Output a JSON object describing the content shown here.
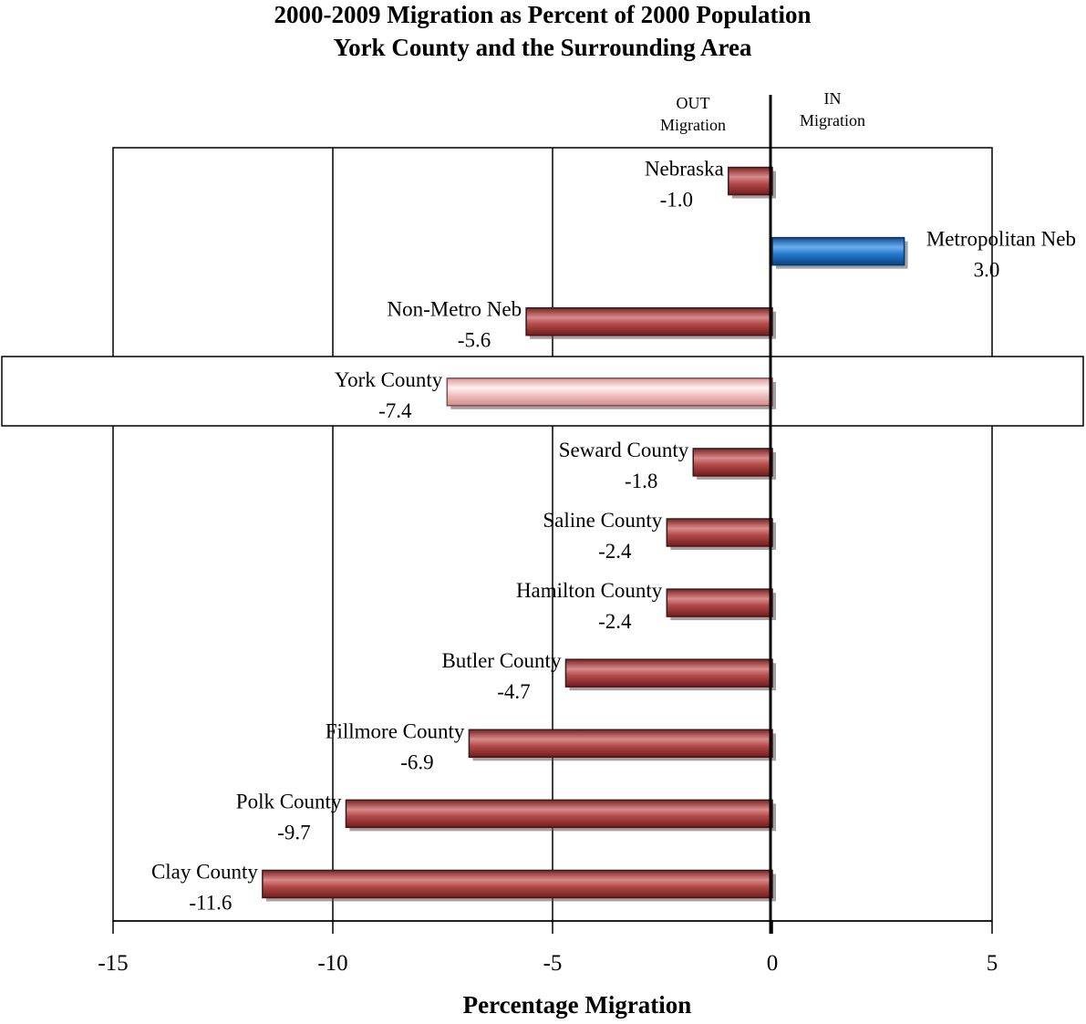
{
  "chart_data": {
    "type": "bar",
    "orientation": "horizontal",
    "title": "2000-2009 Migration as Percent of 2000 Population",
    "subtitle": "York County and the Surrounding Area",
    "xlabel": "Percentage Migration",
    "ylabel": "",
    "xlim": [
      -15,
      5
    ],
    "xticks": [
      -15,
      -10,
      -5,
      0,
      5
    ],
    "grid": "vertical",
    "out_label": {
      "line1": "OUT",
      "line2": "Migration"
    },
    "in_label": {
      "line1": "IN",
      "line2": "Migration"
    },
    "highlighted": "York County",
    "colors": {
      "negative": "#a83c3c",
      "positive": "#1f6fc0",
      "highlight": "#f2b3b3",
      "gridline": "#000000"
    },
    "categories": [
      "Nebraska",
      "Metropolitan Neb",
      "Non-Metro Neb",
      "York County",
      "Seward County",
      "Saline County",
      "Hamilton County",
      "Butler County",
      "Fillmore County",
      "Polk County",
      "Clay County"
    ],
    "values": [
      -1.0,
      3.0,
      -5.6,
      -7.4,
      -1.8,
      -2.4,
      -2.4,
      -4.7,
      -6.9,
      -9.7,
      -11.6
    ],
    "value_labels": [
      "-1.0",
      "3.0",
      "-5.6",
      "-7.4",
      "-1.8",
      "-2.4",
      "-2.4",
      "-4.7",
      "-6.9",
      "-9.7",
      "-11.6"
    ]
  }
}
